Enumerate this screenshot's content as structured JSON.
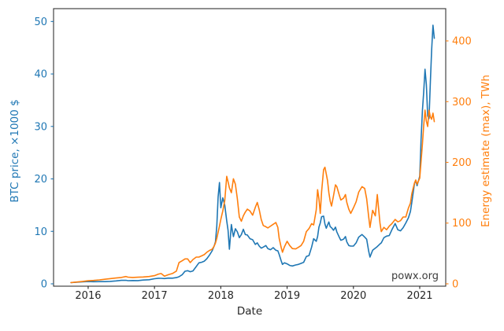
{
  "figure": {
    "watermark": "powx.org"
  },
  "chart_data": {
    "type": "line",
    "title": "",
    "xlabel": "Date",
    "ylabel_left": "BTC price, ×1000 $",
    "ylabel_right": "Energy estimate (max), TWh",
    "x_ticks": [
      2016,
      2017,
      2018,
      2019,
      2020,
      2021
    ],
    "x_tick_labels": [
      "2016",
      "2017",
      "2018",
      "2019",
      "2020",
      "2021"
    ],
    "y_ticks_left": [
      0,
      10,
      20,
      30,
      40,
      50
    ],
    "y_tick_labels_left": [
      "0",
      "10",
      "20",
      "30",
      "40",
      "50"
    ],
    "y_ticks_right": [
      0,
      100,
      200,
      300,
      400
    ],
    "y_tick_labels_right": [
      "0",
      "100",
      "200",
      "300",
      "400"
    ],
    "xlim": [
      2015.478,
      2021.392
    ],
    "ylim_left": [
      -0.45,
      52.45
    ],
    "ylim_right": [
      -3.9,
      453.1
    ],
    "grid": false,
    "legend": "none",
    "colors": {
      "btc": "#1f77b4",
      "energy": "#ff7f0e",
      "ticks": "#262626",
      "spine": "#333333",
      "watermark": "#3c3c3c"
    },
    "x": [
      2015.74,
      2015.83,
      2015.92,
      2016.0,
      2016.08,
      2016.17,
      2016.25,
      2016.33,
      2016.42,
      2016.5,
      2016.57,
      2016.6,
      2016.67,
      2016.75,
      2016.83,
      2016.92,
      2017.0,
      2017.06,
      2017.1,
      2017.15,
      2017.21,
      2017.27,
      2017.33,
      2017.37,
      2017.42,
      2017.46,
      2017.5,
      2017.54,
      2017.58,
      2017.63,
      2017.67,
      2017.71,
      2017.75,
      2017.79,
      2017.83,
      2017.87,
      2017.9,
      2017.92,
      2017.94,
      2017.96,
      2017.98,
      2018.0,
      2018.03,
      2018.06,
      2018.09,
      2018.11,
      2018.13,
      2018.16,
      2018.19,
      2018.22,
      2018.25,
      2018.28,
      2018.31,
      2018.34,
      2018.37,
      2018.4,
      2018.44,
      2018.48,
      2018.52,
      2018.55,
      2018.58,
      2018.61,
      2018.64,
      2018.68,
      2018.71,
      2018.75,
      2018.79,
      2018.83,
      2018.86,
      2018.88,
      2018.91,
      2018.93,
      2018.96,
      2019.0,
      2019.04,
      2019.08,
      2019.13,
      2019.17,
      2019.21,
      2019.25,
      2019.29,
      2019.33,
      2019.37,
      2019.4,
      2019.44,
      2019.46,
      2019.48,
      2019.5,
      2019.52,
      2019.55,
      2019.57,
      2019.59,
      2019.61,
      2019.63,
      2019.65,
      2019.67,
      2019.7,
      2019.73,
      2019.75,
      2019.79,
      2019.81,
      2019.85,
      2019.88,
      2019.9,
      2019.93,
      2019.96,
      2020.0,
      2020.04,
      2020.08,
      2020.13,
      2020.17,
      2020.2,
      2020.23,
      2020.25,
      2020.29,
      2020.33,
      2020.36,
      2020.4,
      2020.42,
      2020.46,
      2020.5,
      2020.54,
      2020.58,
      2020.63,
      2020.67,
      2020.71,
      2020.75,
      2020.79,
      2020.83,
      2020.86,
      2020.88,
      2020.92,
      2020.94,
      2020.96,
      2021.0,
      2021.02,
      2021.04,
      2021.06,
      2021.08,
      2021.1,
      2021.12,
      2021.14,
      2021.16,
      2021.18,
      2021.2,
      2021.22
    ],
    "series": [
      {
        "name": "BTC price",
        "axis": "left",
        "color": "#1f77b4",
        "values": [
          0.24,
          0.32,
          0.39,
          0.43,
          0.4,
          0.42,
          0.42,
          0.46,
          0.55,
          0.66,
          0.68,
          0.6,
          0.63,
          0.61,
          0.72,
          0.78,
          0.97,
          1.06,
          1.05,
          1.0,
          1.1,
          1.08,
          1.19,
          1.35,
          1.75,
          2.4,
          2.5,
          2.3,
          2.45,
          3.3,
          4.0,
          4.1,
          4.3,
          4.8,
          5.5,
          6.3,
          7.2,
          8.0,
          11.0,
          16.6,
          19.3,
          14.5,
          16.4,
          15.0,
          12.0,
          10.2,
          6.6,
          11.3,
          9.0,
          10.5,
          9.9,
          8.8,
          9.4,
          10.4,
          9.4,
          9.3,
          8.6,
          8.4,
          7.5,
          7.8,
          7.2,
          6.8,
          7.0,
          7.3,
          6.7,
          6.5,
          6.9,
          6.4,
          6.3,
          5.6,
          4.4,
          3.7,
          4.0,
          3.8,
          3.5,
          3.4,
          3.6,
          3.7,
          3.9,
          4.1,
          5.2,
          5.4,
          7.0,
          8.6,
          8.1,
          9.0,
          10.8,
          11.6,
          12.8,
          12.9,
          11.4,
          10.6,
          11.2,
          11.8,
          10.9,
          10.7,
          10.2,
          10.8,
          9.9,
          8.8,
          8.3,
          8.5,
          9.0,
          8.0,
          7.3,
          7.2,
          7.2,
          7.8,
          8.9,
          9.4,
          8.9,
          8.5,
          6.2,
          5.1,
          6.4,
          6.8,
          7.1,
          7.6,
          7.8,
          8.8,
          9.1,
          9.2,
          10.3,
          11.5,
          10.3,
          10.1,
          10.7,
          11.6,
          12.6,
          13.8,
          15.5,
          19.1,
          19.7,
          18.7,
          20.5,
          27.5,
          33.0,
          36.5,
          40.9,
          38.0,
          32.0,
          31.5,
          38.5,
          44.5,
          49.3,
          46.8
        ]
      },
      {
        "name": "Energy estimate (max)",
        "axis": "right",
        "color": "#ff7f0e",
        "values": [
          2,
          3,
          4,
          5,
          5.5,
          6.5,
          7.5,
          8.5,
          9.5,
          10.5,
          12,
          11,
          10.5,
          10.8,
          11.2,
          12,
          13.5,
          16,
          17,
          12.5,
          15,
          17,
          21,
          35,
          38,
          41,
          41,
          35,
          40,
          44,
          44,
          46,
          48,
          52,
          55,
          57,
          62,
          67,
          75,
          85,
          95,
          106,
          120,
          137,
          177,
          168,
          158,
          150,
          173,
          164,
          140,
          110,
          103,
          112,
          118,
          123,
          120,
          113,
          126,
          134,
          122,
          106,
          96,
          94,
          92,
          95,
          98,
          101,
          93,
          75,
          60,
          52,
          61,
          70,
          63,
          58,
          57.5,
          60,
          63,
          70,
          86,
          91,
          99,
          97,
          122,
          155,
          140,
          116,
          152,
          188,
          192,
          181,
          170,
          150,
          136,
          128,
          145,
          163,
          160,
          145,
          138,
          141,
          147,
          134,
          123,
          116,
          125,
          135,
          151,
          160,
          157,
          140,
          110,
          93,
          121,
          112,
          147,
          100,
          86,
          93,
          89,
          95,
          99,
          106,
          102,
          104,
          110,
          110,
          125,
          133,
          148,
          166,
          171,
          164,
          174,
          202,
          230,
          260,
          286,
          268,
          259,
          286,
          275,
          271,
          281,
          267
        ]
      }
    ]
  }
}
